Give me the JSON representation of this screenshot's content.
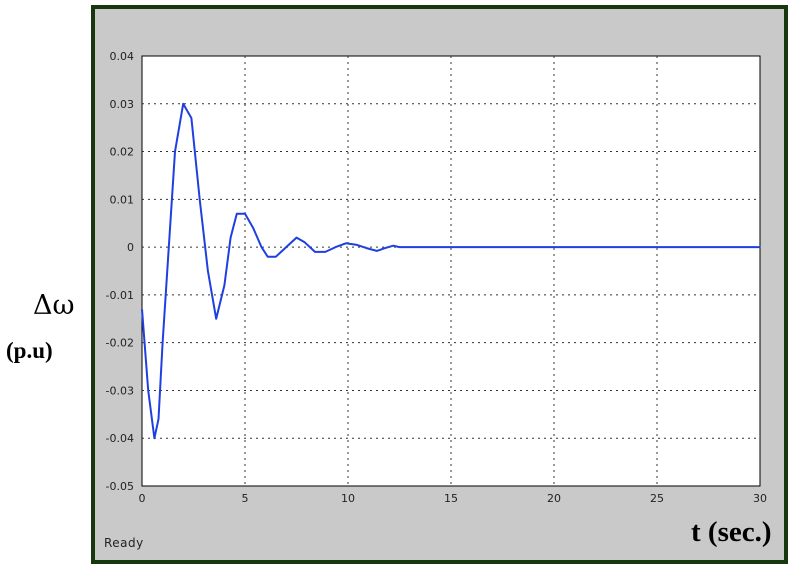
{
  "window": {
    "status_text": "Ready"
  },
  "labels": {
    "ylabel_symbol": "Δω",
    "ylabel_unit": "(p.u)",
    "xlabel": "t (sec.)"
  },
  "chart_data": {
    "type": "line",
    "xlabel": "t (sec.)",
    "ylabel": "Δω (p.u)",
    "xlim": [
      0,
      30
    ],
    "ylim": [
      -0.05,
      0.04
    ],
    "x_ticks": [
      0,
      5,
      10,
      15,
      20,
      25,
      30
    ],
    "x_tick_labels": [
      "0",
      "5",
      "10",
      "15",
      "20",
      "25",
      "30"
    ],
    "y_ticks": [
      0.04,
      0.03,
      0.02,
      0.01,
      0,
      -0.01,
      -0.02,
      -0.03,
      -0.04,
      -0.05
    ],
    "y_tick_labels": [
      "0.04",
      "0.03",
      "0.02",
      "0.01",
      "0",
      "-0.01",
      "-0.02",
      "-0.03",
      "-0.04",
      "-0.05"
    ],
    "grid": true,
    "series": [
      {
        "color": "#1f3fe0",
        "x": [
          0,
          0.3,
          0.6,
          0.8,
          1.0,
          1.3,
          1.6,
          2.0,
          2.4,
          2.8,
          3.2,
          3.6,
          4.0,
          4.3,
          4.6,
          5.0,
          5.4,
          5.8,
          6.1,
          6.5,
          7.0,
          7.5,
          7.9,
          8.4,
          8.9,
          9.4,
          9.9,
          10.4,
          10.9,
          11.4,
          11.8,
          12.2,
          12.5,
          13.0,
          14.0,
          16.0,
          20.0,
          25.0,
          30.0
        ],
        "y": [
          -0.013,
          -0.03,
          -0.04,
          -0.036,
          -0.02,
          0.0,
          0.02,
          0.03,
          0.027,
          0.01,
          -0.005,
          -0.015,
          -0.008,
          0.002,
          0.007,
          0.007,
          0.004,
          0.0,
          -0.002,
          -0.002,
          0.0,
          0.002,
          0.001,
          -0.001,
          -0.001,
          0.0,
          0.0008,
          0.0005,
          -0.0002,
          -0.0008,
          -0.0002,
          0.0003,
          0.0,
          0.0,
          0.0,
          0.0,
          0.0,
          0.0,
          0.0
        ]
      }
    ]
  }
}
